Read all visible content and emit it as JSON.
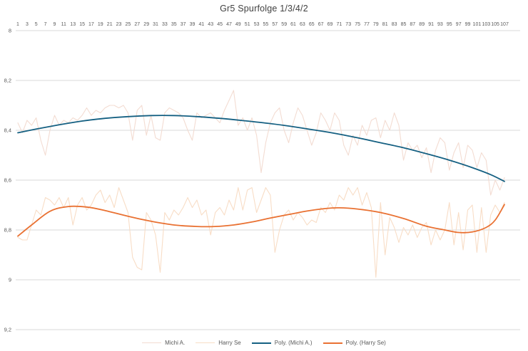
{
  "title": "Gr5 Spurfolge 1/3/4/2",
  "colors": {
    "background": "#ffffff",
    "gridline": "#d9d9d9",
    "tick_text": "#595959",
    "title_text": "#404040",
    "michi_raw": "#f3dcd2",
    "harry_raw": "#f8ddc6",
    "poly_michi": "#156082",
    "poly_harry": "#e97132"
  },
  "chart_data": {
    "type": "line",
    "title": "Gr5 Spurfolge 1/3/4/2",
    "x_axis": {
      "min": 1,
      "max": 107,
      "position": "top",
      "tick_labels": [
        "1",
        "3",
        "5",
        "7",
        "9",
        "11",
        "13",
        "15",
        "17",
        "19",
        "21",
        "23",
        "25",
        "27",
        "29",
        "31",
        "33",
        "35",
        "37",
        "39",
        "41",
        "43",
        "45",
        "47",
        "49",
        "51",
        "53",
        "55",
        "57",
        "59",
        "61",
        "63",
        "65",
        "67",
        "69",
        "71",
        "73",
        "75",
        "77",
        "79",
        "81",
        "83",
        "85",
        "87",
        "89",
        "91",
        "93",
        "95",
        "97",
        "99",
        "101",
        "103",
        "105",
        "107"
      ]
    },
    "y_axis": {
      "min": 8,
      "max": 9.2,
      "step": 0.2,
      "inverted": true,
      "tick_labels": [
        "8",
        "8,2",
        "8,4",
        "8,6",
        "8,8",
        "9",
        "9,2"
      ]
    },
    "grid": "horizontal",
    "legend_position": "bottom",
    "series": [
      {
        "name": "Michi A.",
        "kind": "raw",
        "color": "#f3dcd2",
        "values": [
          8.37,
          8.41,
          8.36,
          8.38,
          8.35,
          8.44,
          8.5,
          8.4,
          8.34,
          8.38,
          8.36,
          8.37,
          8.35,
          8.36,
          8.34,
          8.31,
          8.34,
          8.32,
          8.33,
          8.31,
          8.3,
          8.3,
          8.31,
          8.3,
          8.33,
          8.44,
          8.32,
          8.3,
          8.42,
          8.34,
          8.43,
          8.44,
          8.33,
          8.31,
          8.32,
          8.33,
          8.35,
          8.4,
          8.44,
          8.33,
          8.35,
          8.34,
          8.33,
          8.35,
          8.37,
          8.32,
          8.28,
          8.24,
          8.38,
          8.35,
          8.4,
          8.35,
          8.42,
          8.57,
          8.45,
          8.37,
          8.33,
          8.31,
          8.4,
          8.45,
          8.37,
          8.31,
          8.34,
          8.4,
          8.46,
          8.41,
          8.33,
          8.36,
          8.4,
          8.33,
          8.36,
          8.46,
          8.5,
          8.42,
          8.46,
          8.38,
          8.42,
          8.36,
          8.35,
          8.43,
          8.36,
          8.4,
          8.33,
          8.38,
          8.52,
          8.45,
          8.48,
          8.46,
          8.51,
          8.47,
          8.57,
          8.48,
          8.43,
          8.45,
          8.56,
          8.49,
          8.45,
          8.55,
          8.46,
          8.48,
          8.55,
          8.49,
          8.52,
          8.66,
          8.6,
          8.64,
          8.59
        ]
      },
      {
        "name": "Harry Se",
        "kind": "raw",
        "color": "#f8ddc6",
        "values": [
          8.83,
          8.84,
          8.84,
          8.78,
          8.72,
          8.74,
          8.67,
          8.68,
          8.7,
          8.67,
          8.71,
          8.67,
          8.78,
          8.7,
          8.67,
          8.72,
          8.7,
          8.66,
          8.64,
          8.69,
          8.66,
          8.71,
          8.63,
          8.68,
          8.73,
          8.91,
          8.95,
          8.96,
          8.73,
          8.76,
          8.82,
          8.97,
          8.73,
          8.76,
          8.72,
          8.74,
          8.71,
          8.67,
          8.71,
          8.68,
          8.74,
          8.72,
          8.82,
          8.73,
          8.71,
          8.74,
          8.68,
          8.72,
          8.63,
          8.72,
          8.64,
          8.63,
          8.73,
          8.68,
          8.63,
          8.66,
          8.89,
          8.8,
          8.74,
          8.72,
          8.76,
          8.73,
          8.75,
          8.78,
          8.76,
          8.77,
          8.71,
          8.73,
          8.69,
          8.72,
          8.66,
          8.68,
          8.63,
          8.66,
          8.63,
          8.7,
          8.65,
          8.71,
          8.99,
          8.69,
          8.9,
          8.75,
          8.79,
          8.85,
          8.79,
          8.82,
          8.78,
          8.83,
          8.79,
          8.77,
          8.86,
          8.8,
          8.84,
          8.8,
          8.69,
          8.86,
          8.73,
          8.88,
          8.72,
          8.7,
          8.89,
          8.71,
          8.89,
          8.74,
          8.7,
          8.73,
          8.69
        ]
      },
      {
        "name": "Poly. (Michi A.)",
        "kind": "trend",
        "color": "#156082",
        "points": [
          [
            1,
            8.41
          ],
          [
            5,
            8.395
          ],
          [
            10,
            8.378
          ],
          [
            15,
            8.363
          ],
          [
            20,
            8.352
          ],
          [
            25,
            8.345
          ],
          [
            30,
            8.341
          ],
          [
            35,
            8.341
          ],
          [
            40,
            8.345
          ],
          [
            45,
            8.352
          ],
          [
            50,
            8.361
          ],
          [
            55,
            8.371
          ],
          [
            60,
            8.383
          ],
          [
            65,
            8.397
          ],
          [
            70,
            8.412
          ],
          [
            75,
            8.43
          ],
          [
            80,
            8.45
          ],
          [
            85,
            8.47
          ],
          [
            90,
            8.494
          ],
          [
            95,
            8.52
          ],
          [
            100,
            8.55
          ],
          [
            104,
            8.578
          ],
          [
            107,
            8.605
          ]
        ]
      },
      {
        "name": "Poly. (Harry Se)",
        "kind": "trend",
        "color": "#e97132",
        "points": [
          [
            1,
            8.825
          ],
          [
            4,
            8.78
          ],
          [
            8,
            8.725
          ],
          [
            12,
            8.706
          ],
          [
            16,
            8.708
          ],
          [
            20,
            8.722
          ],
          [
            25,
            8.745
          ],
          [
            30,
            8.765
          ],
          [
            35,
            8.78
          ],
          [
            40,
            8.786
          ],
          [
            44,
            8.786
          ],
          [
            48,
            8.78
          ],
          [
            52,
            8.768
          ],
          [
            56,
            8.752
          ],
          [
            60,
            8.738
          ],
          [
            64,
            8.724
          ],
          [
            68,
            8.714
          ],
          [
            71,
            8.711
          ],
          [
            75,
            8.716
          ],
          [
            80,
            8.73
          ],
          [
            85,
            8.754
          ],
          [
            90,
            8.785
          ],
          [
            94,
            8.8
          ],
          [
            97,
            8.81
          ],
          [
            100,
            8.808
          ],
          [
            103,
            8.79
          ],
          [
            105,
            8.76
          ],
          [
            107,
            8.698
          ]
        ]
      }
    ],
    "legend": [
      "Michi A.",
      "Harry Se",
      "Poly. (Michi A.)",
      "Poly. (Harry Se)"
    ]
  }
}
